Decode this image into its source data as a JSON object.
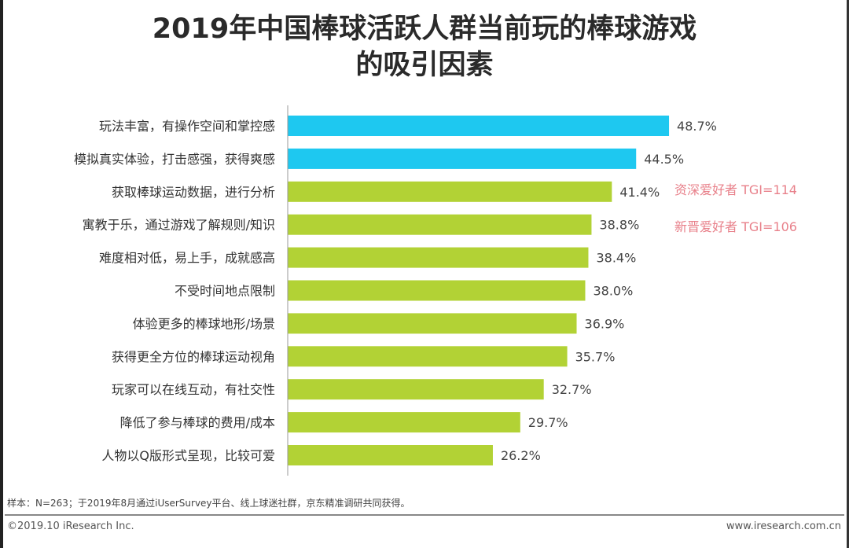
{
  "title_line1": "2019年中国棒球活跃人群当前玩的棒球游戏",
  "title_line2": "的吸引因素",
  "chart_data": {
    "type": "bar",
    "orientation": "horizontal",
    "categories": [
      "玩法丰富，有操作空间和掌控感",
      "模拟真实体验，打击感强，获得爽感",
      "获取棒球运动数据，进行分析",
      "寓教于乐，通过游戏了解规则/知识",
      "难度相对低，易上手，成就感高",
      "不受时间地点限制",
      "体验更多的棒球地形/场景",
      "获得更全方位的棒球运动视角",
      "玩家可以在线互动，有社交性",
      "降低了参与棒球的费用/成本",
      "人物以Q版形式呈现，比较可爱"
    ],
    "values": [
      48.7,
      44.5,
      41.4,
      38.8,
      38.4,
      38.0,
      36.9,
      35.7,
      32.7,
      29.7,
      26.2
    ],
    "value_labels": [
      "48.7%",
      "44.5%",
      "41.4%",
      "38.8%",
      "38.4%",
      "38.0%",
      "36.9%",
      "35.7%",
      "32.7%",
      "29.7%",
      "26.2%"
    ],
    "highlighted_count": 2,
    "colors": {
      "highlight": "#1ec8f0",
      "default": "#b2d235",
      "annotation": "#e8808a"
    },
    "xlim": [
      0,
      50
    ],
    "grid": false,
    "annotations": [
      "资深爱好者 TGI=114",
      "新晋爱好者 TGI=106"
    ]
  },
  "footer": {
    "source": "样本：N=263；于2019年8月通过iUserSurvey平台、线上球迷社群，京东精准调研共同获得。",
    "copyright": "©2019.10 iResearch Inc.",
    "website": "www.iresearch.com.cn"
  }
}
